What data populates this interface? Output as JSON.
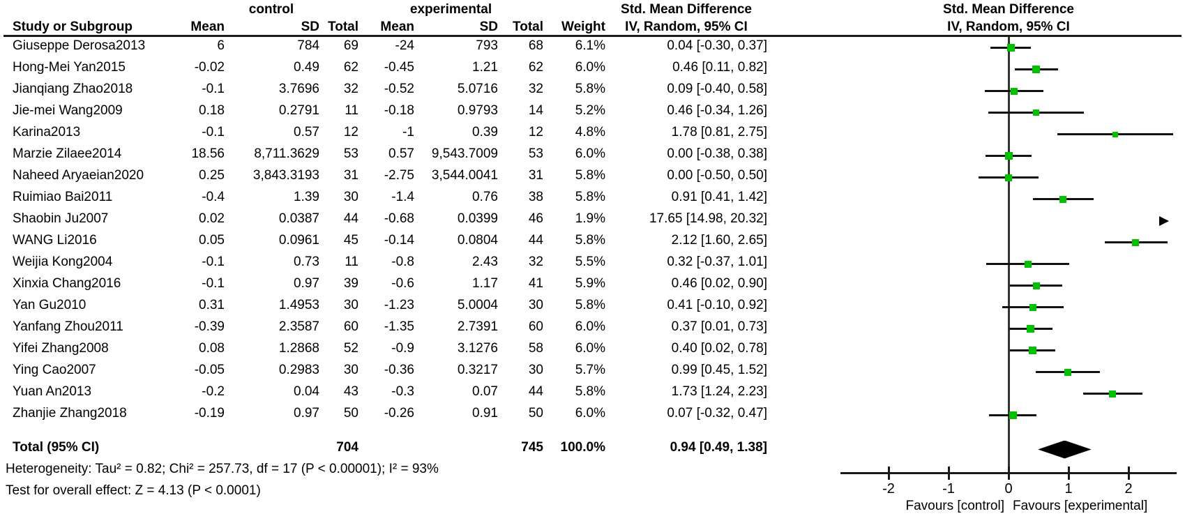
{
  "headers": {
    "group_control": "control",
    "group_experimental": "experimental",
    "group_smd_text": "Std. Mean Difference",
    "group_smd_plot": "Std. Mean Difference",
    "study": "Study or Subgroup",
    "mean": "Mean",
    "sd": "SD",
    "total": "Total",
    "weight": "Weight",
    "method_ci": "IV, Random, 95% CI",
    "method_ci_plot": "IV, Random, 95% CI"
  },
  "studies": [
    {
      "name": "Giuseppe Derosa2013",
      "c_mean": "6",
      "c_sd": "784",
      "c_total": "69",
      "e_mean": "-24",
      "e_sd": "793",
      "e_total": "68",
      "weight": "6.1%",
      "w": 6.1,
      "ci_text": "0.04 [-0.30, 0.37]",
      "est": 0.04,
      "lo": -0.3,
      "hi": 0.37
    },
    {
      "name": "Hong-Mei Yan2015",
      "c_mean": "-0.02",
      "c_sd": "0.49",
      "c_total": "62",
      "e_mean": "-0.45",
      "e_sd": "1.21",
      "e_total": "62",
      "weight": "6.0%",
      "w": 6.0,
      "ci_text": "0.46 [0.11, 0.82]",
      "est": 0.46,
      "lo": 0.11,
      "hi": 0.82
    },
    {
      "name": "Jianqiang Zhao2018",
      "c_mean": "-0.1",
      "c_sd": "3.7696",
      "c_total": "32",
      "e_mean": "-0.52",
      "e_sd": "5.0716",
      "e_total": "32",
      "weight": "5.8%",
      "w": 5.8,
      "ci_text": "0.09 [-0.40, 0.58]",
      "est": 0.09,
      "lo": -0.4,
      "hi": 0.58
    },
    {
      "name": "Jie-mei Wang2009",
      "c_mean": "0.18",
      "c_sd": "0.2791",
      "c_total": "11",
      "e_mean": "-0.18",
      "e_sd": "0.9793",
      "e_total": "14",
      "weight": "5.2%",
      "w": 5.2,
      "ci_text": "0.46 [-0.34, 1.26]",
      "est": 0.46,
      "lo": -0.34,
      "hi": 1.26
    },
    {
      "name": "Karina2013",
      "c_mean": "-0.1",
      "c_sd": "0.57",
      "c_total": "12",
      "e_mean": "-1",
      "e_sd": "0.39",
      "e_total": "12",
      "weight": "4.8%",
      "w": 4.8,
      "ci_text": "1.78 [0.81, 2.75]",
      "est": 1.78,
      "lo": 0.81,
      "hi": 2.75
    },
    {
      "name": "Marzie Zilaee2014",
      "c_mean": "18.56",
      "c_sd": "8,711.3629",
      "c_total": "53",
      "e_mean": "0.57",
      "e_sd": "9,543.7009",
      "e_total": "53",
      "weight": "6.0%",
      "w": 6.0,
      "ci_text": "0.00 [-0.38, 0.38]",
      "est": 0.0,
      "lo": -0.38,
      "hi": 0.38
    },
    {
      "name": "Naheed Aryaeian2020",
      "c_mean": "0.25",
      "c_sd": "3,843.3193",
      "c_total": "31",
      "e_mean": "-2.75",
      "e_sd": "3,544.0041",
      "e_total": "31",
      "weight": "5.8%",
      "w": 5.8,
      "ci_text": "0.00 [-0.50, 0.50]",
      "est": 0.0,
      "lo": -0.5,
      "hi": 0.5
    },
    {
      "name": "Ruimiao Bai2011",
      "c_mean": "-0.4",
      "c_sd": "1.39",
      "c_total": "30",
      "e_mean": "-1.4",
      "e_sd": "0.76",
      "e_total": "38",
      "weight": "5.8%",
      "w": 5.8,
      "ci_text": "0.91 [0.41, 1.42]",
      "est": 0.91,
      "lo": 0.41,
      "hi": 1.42
    },
    {
      "name": "Shaobin Ju2007",
      "c_mean": "0.02",
      "c_sd": "0.0387",
      "c_total": "44",
      "e_mean": "-0.68",
      "e_sd": "0.0399",
      "e_total": "46",
      "weight": "1.9%",
      "w": 1.9,
      "ci_text": "17.65 [14.98, 20.32]",
      "est": 17.65,
      "lo": 14.98,
      "hi": 20.32
    },
    {
      "name": "WANG Li2016",
      "c_mean": "0.05",
      "c_sd": "0.0961",
      "c_total": "45",
      "e_mean": "-0.14",
      "e_sd": "0.0804",
      "e_total": "44",
      "weight": "5.8%",
      "w": 5.8,
      "ci_text": "2.12 [1.60, 2.65]",
      "est": 2.12,
      "lo": 1.6,
      "hi": 2.65
    },
    {
      "name": "Weijia Kong2004",
      "c_mean": "-0.1",
      "c_sd": "0.73",
      "c_total": "11",
      "e_mean": "-0.8",
      "e_sd": "2.43",
      "e_total": "32",
      "weight": "5.5%",
      "w": 5.5,
      "ci_text": "0.32 [-0.37, 1.01]",
      "est": 0.32,
      "lo": -0.37,
      "hi": 1.01
    },
    {
      "name": "Xinxia Chang2016",
      "c_mean": "-0.1",
      "c_sd": "0.97",
      "c_total": "39",
      "e_mean": "-0.6",
      "e_sd": "1.17",
      "e_total": "41",
      "weight": "5.9%",
      "w": 5.9,
      "ci_text": "0.46 [0.02, 0.90]",
      "est": 0.46,
      "lo": 0.02,
      "hi": 0.9
    },
    {
      "name": "Yan Gu2010",
      "c_mean": "0.31",
      "c_sd": "1.4953",
      "c_total": "30",
      "e_mean": "-1.23",
      "e_sd": "5.0004",
      "e_total": "30",
      "weight": "5.8%",
      "w": 5.8,
      "ci_text": "0.41 [-0.10, 0.92]",
      "est": 0.41,
      "lo": -0.1,
      "hi": 0.92
    },
    {
      "name": "Yanfang Zhou2011",
      "c_mean": "-0.39",
      "c_sd": "2.3587",
      "c_total": "60",
      "e_mean": "-1.35",
      "e_sd": "2.7391",
      "e_total": "60",
      "weight": "6.0%",
      "w": 6.0,
      "ci_text": "0.37 [0.01, 0.73]",
      "est": 0.37,
      "lo": 0.01,
      "hi": 0.73
    },
    {
      "name": "Yifei Zhang2008",
      "c_mean": "0.08",
      "c_sd": "1.2868",
      "c_total": "52",
      "e_mean": "-0.9",
      "e_sd": "3.1276",
      "e_total": "58",
      "weight": "6.0%",
      "w": 6.0,
      "ci_text": "0.40 [0.02, 0.78]",
      "est": 0.4,
      "lo": 0.02,
      "hi": 0.78
    },
    {
      "name": "Ying Cao2007",
      "c_mean": "-0.05",
      "c_sd": "0.2983",
      "c_total": "30",
      "e_mean": "-0.36",
      "e_sd": "0.3217",
      "e_total": "30",
      "weight": "5.7%",
      "w": 5.7,
      "ci_text": "0.99 [0.45, 1.52]",
      "est": 0.99,
      "lo": 0.45,
      "hi": 1.52
    },
    {
      "name": "Yuan An2013",
      "c_mean": "-0.2",
      "c_sd": "0.04",
      "c_total": "43",
      "e_mean": "-0.3",
      "e_sd": "0.07",
      "e_total": "44",
      "weight": "5.8%",
      "w": 5.8,
      "ci_text": "1.73 [1.24, 2.23]",
      "est": 1.73,
      "lo": 1.24,
      "hi": 2.23
    },
    {
      "name": "Zhanjie Zhang2018",
      "c_mean": "-0.19",
      "c_sd": "0.97",
      "c_total": "50",
      "e_mean": "-0.26",
      "e_sd": "0.91",
      "e_total": "50",
      "weight": "6.0%",
      "w": 6.0,
      "ci_text": "0.07 [-0.32, 0.47]",
      "est": 0.07,
      "lo": -0.32,
      "hi": 0.47
    }
  ],
  "total_row": {
    "label": "Total (95% CI)",
    "c_total": "704",
    "e_total": "745",
    "weight": "100.0%",
    "ci_text": "0.94 [0.49, 1.38]",
    "est": 0.94,
    "lo": 0.49,
    "hi": 1.38
  },
  "footer": {
    "heterogeneity": "Heterogeneity: Tau² = 0.82; Chi² = 257.73, df = 17 (P < 0.00001); I² = 93%",
    "overall_effect": "Test for overall effect: Z = 4.13 (P < 0.0001)"
  },
  "axis": {
    "ticks": [
      "-2",
      "-1",
      "0",
      "1",
      "2"
    ],
    "tick_values": [
      -2,
      -1,
      0,
      1,
      2
    ],
    "min": -2.8,
    "max": 2.8,
    "favours_left": "Favours [control]",
    "favours_right": "Favours [experimental]"
  },
  "colors": {
    "marker_green": "#00c000",
    "ink": "#111111"
  },
  "chart_data": {
    "type": "scatter",
    "subtype": "forest-plot-meta-analysis",
    "title": "Std. Mean Difference, IV, Random, 95% CI",
    "categories": [
      "Giuseppe Derosa2013",
      "Hong-Mei Yan2015",
      "Jianqiang Zhao2018",
      "Jie-mei Wang2009",
      "Karina2013",
      "Marzie Zilaee2014",
      "Naheed Aryaeian2020",
      "Ruimiao Bai2011",
      "Shaobin Ju2007",
      "WANG Li2016",
      "Weijia Kong2004",
      "Xinxia Chang2016",
      "Yan Gu2010",
      "Yanfang Zhou2011",
      "Yifei Zhang2008",
      "Ying Cao2007",
      "Yuan An2013",
      "Zhanjie Zhang2018"
    ],
    "series": [
      {
        "name": "SMD",
        "values": [
          0.04,
          0.46,
          0.09,
          0.46,
          1.78,
          0.0,
          0.0,
          0.91,
          17.65,
          2.12,
          0.32,
          0.46,
          0.41,
          0.37,
          0.4,
          0.99,
          1.73,
          0.07
        ]
      },
      {
        "name": "CI_lower",
        "values": [
          -0.3,
          0.11,
          -0.4,
          -0.34,
          0.81,
          -0.38,
          -0.5,
          0.41,
          14.98,
          1.6,
          -0.37,
          0.02,
          -0.1,
          0.01,
          0.02,
          0.45,
          1.24,
          -0.32
        ]
      },
      {
        "name": "CI_upper",
        "values": [
          0.37,
          0.82,
          0.58,
          1.26,
          2.75,
          0.38,
          0.5,
          1.42,
          20.32,
          2.65,
          1.01,
          0.9,
          0.92,
          0.73,
          0.78,
          1.52,
          2.23,
          0.47
        ]
      },
      {
        "name": "Weight_pct",
        "values": [
          6.1,
          6.0,
          5.8,
          5.2,
          4.8,
          6.0,
          5.8,
          5.8,
          1.9,
          5.8,
          5.5,
          5.9,
          5.8,
          6.0,
          6.0,
          5.7,
          5.8,
          6.0
        ]
      }
    ],
    "summary": {
      "label": "Total (95% CI)",
      "smd": 0.94,
      "ci": [
        0.49,
        1.38
      ],
      "control_total": 704,
      "experimental_total": 745,
      "weight_pct": 100.0
    },
    "xlim": [
      -2.8,
      2.8
    ],
    "x_ticks": [
      -2,
      -1,
      0,
      1,
      2
    ],
    "x_annotations": [
      "Favours [control]",
      "Favours [experimental]"
    ],
    "legend_position": "none",
    "grid": false
  }
}
